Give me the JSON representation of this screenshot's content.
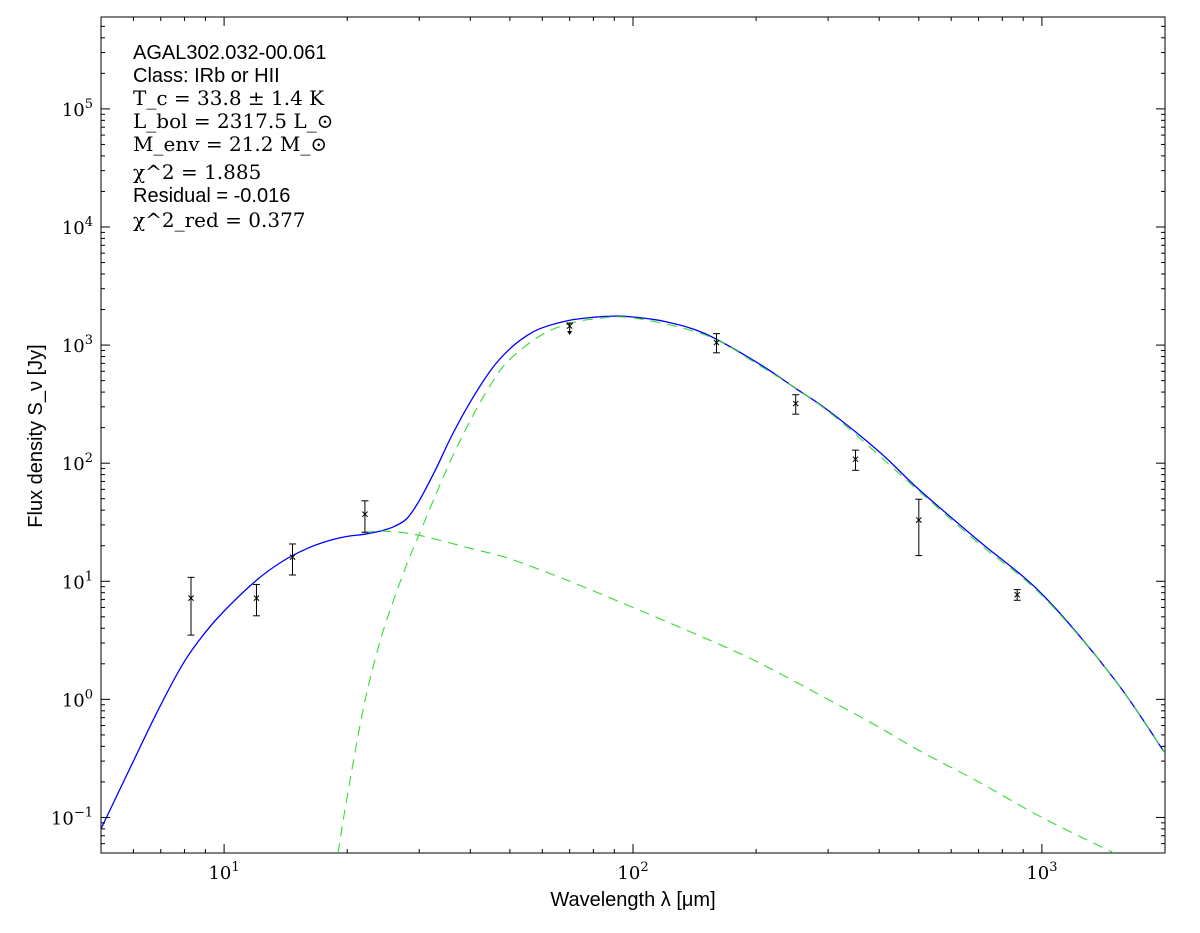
{
  "chart_data": {
    "type": "line",
    "title": "",
    "xlabel": "Wavelength λ [μm]",
    "ylabel": "Flux density S_ν [Jy]",
    "xscale": "log",
    "yscale": "log",
    "xlim": [
      5,
      2000
    ],
    "ylim": [
      0.05,
      600000
    ],
    "grid": false,
    "legend": "none",
    "annotations": {
      "source": "AGAL302.032-00.061",
      "class": "Class: IRb or HII",
      "tc": "T_c = 33.8 ± 1.4 K",
      "lbol": "L_bol = 2317.5 L_⊙",
      "menv": "M_env = 21.2 M_⊙",
      "chi2": "χ^2 = 1.885",
      "residual": "Residual = -0.016",
      "chi2red": "χ^2_red = 0.377"
    },
    "x_ticks": [
      {
        "value": 10,
        "label": "10",
        "exp": "1"
      },
      {
        "value": 100,
        "label": "10",
        "exp": "2"
      },
      {
        "value": 1000,
        "label": "10",
        "exp": "3"
      }
    ],
    "y_ticks": [
      {
        "value": 0.1,
        "label": "10",
        "exp": "−1"
      },
      {
        "value": 1,
        "label": "10",
        "exp": "0"
      },
      {
        "value": 10,
        "label": "10",
        "exp": "1"
      },
      {
        "value": 100,
        "label": "10",
        "exp": "2"
      },
      {
        "value": 1000,
        "label": "10",
        "exp": "3"
      },
      {
        "value": 10000,
        "label": "10",
        "exp": "4"
      },
      {
        "value": 100000,
        "label": "10",
        "exp": "5"
      }
    ],
    "series": [
      {
        "kind": "model-total",
        "color": "#0000ff",
        "dash": "solid",
        "x": [
          5,
          6,
          7,
          8,
          9,
          10,
          12,
          14,
          16,
          18,
          20,
          22,
          24,
          26,
          28,
          30,
          33,
          36,
          40,
          45,
          50,
          55,
          60,
          70,
          80,
          90,
          100,
          120,
          150,
          200,
          250,
          300,
          400,
          500,
          700,
          1000,
          1500,
          2000
        ],
        "y": [
          0.08,
          0.3,
          0.9,
          2.1,
          3.7,
          5.6,
          10.2,
          15,
          19,
          22,
          24,
          25,
          26.5,
          29,
          34,
          48,
          90,
          170,
          330,
          620,
          930,
          1200,
          1400,
          1620,
          1720,
          1760,
          1730,
          1580,
          1250,
          720,
          430,
          280,
          125,
          60,
          22,
          7.8,
          1.5,
          0.35
        ]
      },
      {
        "kind": "model-component-warm",
        "color": "#33dd33",
        "dash": "dashed",
        "x": [
          22,
          25,
          30,
          40,
          50,
          70,
          100,
          150,
          200,
          300,
          400,
          500,
          700,
          1000,
          1500
        ],
        "y": [
          26,
          26.5,
          24.5,
          19,
          15.5,
          10,
          6,
          3.3,
          2.1,
          1.0,
          0.58,
          0.37,
          0.2,
          0.1,
          0.05
        ]
      },
      {
        "kind": "model-component-cold",
        "color": "#33dd33",
        "dash": "dashed",
        "x": [
          19,
          20,
          22,
          24,
          26,
          28,
          30,
          33,
          36,
          40,
          45,
          50,
          60,
          70,
          80,
          100,
          150,
          200,
          300,
          500,
          700,
          1000,
          1500,
          2000
        ],
        "y": [
          0.05,
          0.15,
          0.9,
          3,
          7,
          14,
          25,
          55,
          110,
          230,
          470,
          760,
          1230,
          1520,
          1660,
          1700,
          1220,
          700,
          275,
          58,
          21,
          7.6,
          1.5,
          0.35
        ]
      }
    ],
    "points": [
      {
        "x": 8.3,
        "y": 7.2,
        "yerr_low": 3.5,
        "yerr_high": 10.8,
        "upper_limit": false
      },
      {
        "x": 12,
        "y": 7.2,
        "yerr_low": 5.1,
        "yerr_high": 9.4,
        "upper_limit": false
      },
      {
        "x": 14.7,
        "y": 16,
        "yerr_low": 11.3,
        "yerr_high": 20.7,
        "upper_limit": false
      },
      {
        "x": 22.1,
        "y": 37,
        "yerr_low": 26,
        "yerr_high": 48,
        "upper_limit": false
      },
      {
        "x": 70,
        "y": 1450,
        "yerr_low": null,
        "yerr_high": null,
        "upper_limit": true
      },
      {
        "x": 160,
        "y": 1050,
        "yerr_low": 860,
        "yerr_high": 1250,
        "upper_limit": false
      },
      {
        "x": 250,
        "y": 320,
        "yerr_low": 260,
        "yerr_high": 380,
        "upper_limit": false
      },
      {
        "x": 350,
        "y": 108,
        "yerr_low": 87,
        "yerr_high": 129,
        "upper_limit": false
      },
      {
        "x": 500,
        "y": 33,
        "yerr_low": 16.5,
        "yerr_high": 49.5,
        "upper_limit": false
      },
      {
        "x": 870,
        "y": 7.7,
        "yerr_low": 6.9,
        "yerr_high": 8.5,
        "upper_limit": false
      }
    ]
  }
}
